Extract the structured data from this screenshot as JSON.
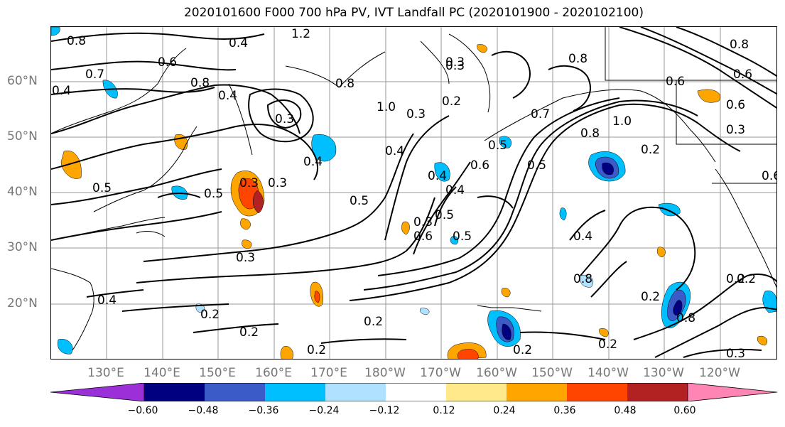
{
  "title": "2020101600 F000 700 hPa PV, IVT Landfall PC (2020101900 - 2020102100)",
  "lat_labels": [
    "60°N",
    "50°N",
    "40°N",
    "30°N",
    "20°N"
  ],
  "lon_labels": [
    "130°E",
    "140°E",
    "150°E",
    "160°E",
    "170°E",
    "180°W",
    "170°W",
    "160°W",
    "150°W",
    "140°W",
    "130°W",
    "120°W"
  ],
  "contour_labels": [
    "0.8",
    "1.2",
    "0.6",
    "0.7",
    "0.8",
    "0.3",
    "0.4",
    "0.5",
    "0.8",
    "0.2",
    "0.3",
    "1.0",
    "0.8",
    "0.8",
    "0.6",
    "0.6",
    "0.7",
    "0.4",
    "0.5",
    "0.4",
    "0.5",
    "0.3",
    "0.3",
    "0.5",
    "0.4",
    "0.5",
    "0.3",
    "0.3",
    "0.4",
    "0.6",
    "0.4",
    "0.6",
    "0.5",
    "0.8",
    "1.0",
    "0.6",
    "0.3",
    "0.2",
    "0.4",
    "0.3",
    "0.5",
    "0.8",
    "0.4",
    "0.2",
    "0.2",
    "0.2",
    "0.2",
    "0.2",
    "0.2",
    "0.2",
    "0.3",
    "0.8",
    "0.3",
    "0.2",
    "0.4",
    "0.6",
    "0.2"
  ],
  "colorbar": {
    "colors": [
      "#9b30d9",
      "#000080",
      "#3a5bc8",
      "#00bfff",
      "#b0e2ff",
      "#ffffff",
      "#ffe98a",
      "#ffa500",
      "#ff4500",
      "#b22222",
      "#ff85b5"
    ],
    "ticks": [
      "−0.60",
      "−0.48",
      "−0.36",
      "−0.24",
      "−0.12",
      "0.12",
      "0.24",
      "0.36",
      "0.48",
      "0.60"
    ]
  },
  "fill_colors": {
    "pos1": "#ffe98a",
    "pos2": "#ffa500",
    "pos3": "#ff4500",
    "pos4": "#b22222",
    "neg1": "#b0e2ff",
    "neg2": "#00bfff",
    "neg3": "#3a5bc8",
    "neg4": "#000080"
  }
}
